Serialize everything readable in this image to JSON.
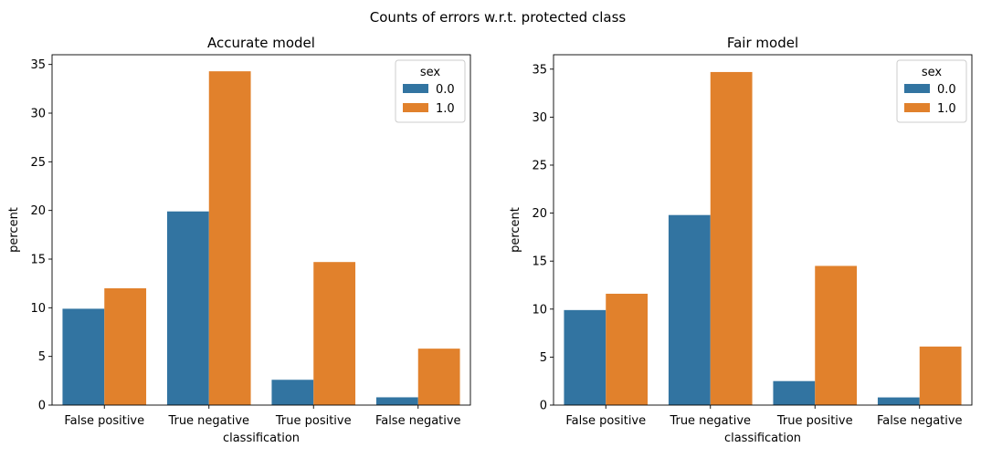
{
  "suptitle": "Counts of errors w.r.t. protected class",
  "colors": {
    "series_0": "#3274a1",
    "series_1": "#e1812c"
  },
  "chart_data": [
    {
      "type": "bar",
      "title": "Accurate model",
      "xlabel": "classification",
      "ylabel": "percent",
      "categories": [
        "False positive",
        "True negative",
        "True positive",
        "False negative"
      ],
      "ylim": [
        0,
        36
      ],
      "yticks": [
        0,
        5,
        10,
        15,
        20,
        25,
        30,
        35
      ],
      "legend": {
        "title": "sex",
        "placement": "top-right"
      },
      "series": [
        {
          "name": "0.0",
          "values": [
            9.9,
            19.9,
            2.6,
            0.8
          ]
        },
        {
          "name": "1.0",
          "values": [
            12.0,
            34.3,
            14.7,
            5.8
          ]
        }
      ]
    },
    {
      "type": "bar",
      "title": "Fair model",
      "xlabel": "classification",
      "ylabel": "percent",
      "categories": [
        "False positive",
        "True negative",
        "True positive",
        "False negative"
      ],
      "ylim": [
        0,
        36.5
      ],
      "yticks": [
        0,
        5,
        10,
        15,
        20,
        25,
        30,
        35
      ],
      "legend": {
        "title": "sex",
        "placement": "top-right"
      },
      "series": [
        {
          "name": "0.0",
          "values": [
            9.9,
            19.8,
            2.5,
            0.8
          ]
        },
        {
          "name": "1.0",
          "values": [
            11.6,
            34.7,
            14.5,
            6.1
          ]
        }
      ]
    }
  ]
}
